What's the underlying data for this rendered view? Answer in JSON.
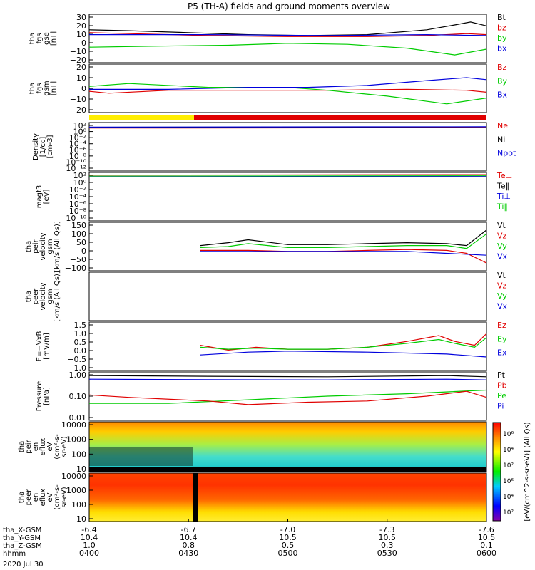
{
  "title": "P5 (TH-A) fields and ground moments overview",
  "colors": {
    "black": "#000000",
    "red": "#e00000",
    "green": "#00cc00",
    "blue": "#0000dd",
    "yellow": "#ffee00"
  },
  "chart_data": {
    "type": "line",
    "title": "P5 (TH-A) fields and ground moments overview",
    "x_axis": {
      "ticks": [
        "0400",
        "0430",
        "0500",
        "0530",
        "0600"
      ],
      "range": [
        "04:00",
        "06:00"
      ],
      "date": "2020 Jul 30",
      "rows": [
        {
          "label": "tha_X-GSM",
          "values": [
            "-6.4",
            "-6.7",
            "-7.0",
            "-7.3",
            "-7.6"
          ]
        },
        {
          "label": "tha_Y-GSM",
          "values": [
            "10.4",
            "10.4",
            "10.5",
            "10.5",
            "10.5"
          ]
        },
        {
          "label": "tha_Z-GSM",
          "values": [
            "1.0",
            "0.8",
            "0.5",
            "0.3",
            "0.1"
          ]
        },
        {
          "label": "hhmm",
          "values": [
            "0400",
            "0430",
            "0500",
            "0530",
            "0600"
          ]
        }
      ]
    },
    "panels": [
      {
        "id": "fgs_gse",
        "ylabel": [
          "tha",
          "fgs",
          "gse",
          "[nT]"
        ],
        "yticks": [
          "30",
          "20",
          "10",
          "0",
          "−10",
          "−20"
        ],
        "ylim": [
          -20,
          30
        ],
        "legend": [
          {
            "name": "Bt",
            "color": "#000000"
          },
          {
            "name": "bz",
            "color": "#e00000"
          },
          {
            "name": "by",
            "color": "#00cc00"
          },
          {
            "name": "bx",
            "color": "#0000dd"
          }
        ],
        "series": [
          {
            "name": "Bt",
            "x": [
              0,
              0.1,
              0.25,
              0.4,
              0.55,
              0.7,
              0.85,
              0.92,
              0.96,
              1
            ],
            "y": [
              14,
              13,
              11,
              9,
              8,
              9,
              14,
              19,
              22,
              18
            ]
          },
          {
            "name": "bz",
            "x": [
              0,
              0.1,
              0.3,
              0.5,
              0.7,
              0.85,
              0.95,
              1
            ],
            "y": [
              11,
              10,
              8,
              7,
              7,
              8,
              10,
              9
            ]
          },
          {
            "name": "by",
            "x": [
              0,
              0.15,
              0.35,
              0.5,
              0.65,
              0.8,
              0.92,
              1
            ],
            "y": [
              -4,
              -3,
              -2,
              0,
              -1,
              -5,
              -12,
              -6
            ]
          },
          {
            "name": "bx",
            "x": [
              0,
              0.3,
              0.6,
              0.85,
              1
            ],
            "y": [
              9,
              9,
              8,
              9,
              8
            ]
          }
        ]
      },
      {
        "id": "fgs_gsm",
        "ylabel": [
          "tha",
          "fgs",
          "gsm",
          "[nT]"
        ],
        "yticks": [
          "20",
          "10",
          "0",
          "−10",
          "−20"
        ],
        "ylim": [
          -25,
          25
        ],
        "legend": [
          {
            "name": "Bz",
            "color": "#e00000"
          },
          {
            "name": "By",
            "color": "#00cc00"
          },
          {
            "name": "Bx",
            "color": "#0000dd"
          }
        ],
        "series": [
          {
            "name": "Bz",
            "x": [
              0,
              0.05,
              0.2,
              0.4,
              0.6,
              0.8,
              0.95,
              1
            ],
            "y": [
              -3,
              -5,
              -2,
              -2,
              -2,
              -1,
              -2,
              -4
            ]
          },
          {
            "name": "By",
            "x": [
              0,
              0.1,
              0.3,
              0.5,
              0.6,
              0.75,
              0.9,
              1
            ],
            "y": [
              2,
              5,
              1,
              1,
              -2,
              -8,
              -16,
              -10
            ]
          },
          {
            "name": "Bx",
            "x": [
              0,
              0.2,
              0.4,
              0.55,
              0.7,
              0.85,
              0.95,
              1
            ],
            "y": [
              -1,
              -1,
              1,
              1,
              3,
              8,
              11,
              9
            ]
          }
        ]
      },
      {
        "id": "density",
        "ylabel": [
          "Density",
          "[1/cc]",
          "[cm-3]"
        ],
        "yticks": [
          "10²",
          "10⁰",
          "10⁻²",
          "10⁻⁴",
          "10⁻⁶",
          "10⁻⁸",
          "10⁻¹⁰",
          "10⁻¹²"
        ],
        "ylim": [
          -13,
          2
        ],
        "log": true,
        "legend": [
          {
            "name": "Ne",
            "color": "#e00000"
          },
          {
            "name": "Ni",
            "color": "#000000"
          },
          {
            "name": "Npot",
            "color": "#0000dd"
          }
        ],
        "series": [
          {
            "name": "Ni",
            "x": [
              0,
              1
            ],
            "y": [
              0.5,
              0.6
            ]
          },
          {
            "name": "Ne",
            "x": [
              0,
              1
            ],
            "y": [
              0.3,
              0.4
            ]
          },
          {
            "name": "Npot",
            "x": [
              0,
              1
            ],
            "y": [
              0.6,
              0.7
            ]
          }
        ]
      },
      {
        "id": "magt3",
        "ylabel": [
          "magt3",
          "[eV]"
        ],
        "yticks": [
          "10²",
          "10⁰",
          "10⁻²",
          "10⁻⁴",
          "10⁻⁶",
          "10⁻⁸",
          "10⁻¹⁰"
        ],
        "ylim": [
          -11,
          2
        ],
        "log": true,
        "legend": [
          {
            "name": "Te⊥",
            "color": "#e00000"
          },
          {
            "name": "Te‖",
            "color": "#000000"
          },
          {
            "name": "Ti⊥",
            "color": "#0000dd"
          },
          {
            "name": "Ti‖",
            "color": "#00cc00"
          }
        ],
        "series": [
          {
            "name": "Te⊥",
            "x": [
              0,
              1
            ],
            "y": [
              1.3,
              1.4
            ]
          },
          {
            "name": "Ti‖",
            "x": [
              0,
              1
            ],
            "y": [
              1.0,
              1.1
            ]
          },
          {
            "name": "Ti⊥",
            "x": [
              0,
              1
            ],
            "y": [
              0.8,
              0.9
            ]
          }
        ]
      },
      {
        "id": "peir_velocity",
        "ylabel": [
          "tha",
          "peir",
          "velocity",
          "gsm",
          "[km/s (All Qs)]"
        ],
        "yticks": [
          "150",
          "100",
          "50",
          "0",
          "−50",
          "−100"
        ],
        "ylim": [
          -100,
          150
        ],
        "legend": [
          {
            "name": "Vt",
            "color": "#000000"
          },
          {
            "name": "Vz",
            "color": "#e00000"
          },
          {
            "name": "Vy",
            "color": "#00cc00"
          },
          {
            "name": "Vx",
            "color": "#0000dd"
          }
        ],
        "series": [
          {
            "name": "Vt",
            "x": [
              0.28,
              0.35,
              0.4,
              0.5,
              0.6,
              0.7,
              0.8,
              0.9,
              0.95,
              1
            ],
            "y": [
              30,
              45,
              60,
              35,
              35,
              40,
              45,
              40,
              30,
              110
            ]
          },
          {
            "name": "Vy",
            "x": [
              0.28,
              0.35,
              0.4,
              0.5,
              0.6,
              0.7,
              0.8,
              0.9,
              0.95,
              1
            ],
            "y": [
              20,
              25,
              40,
              20,
              20,
              25,
              30,
              30,
              15,
              90
            ]
          },
          {
            "name": "Vz",
            "x": [
              0.28,
              0.4,
              0.5,
              0.6,
              0.7,
              0.8,
              0.9,
              0.95,
              1
            ],
            "y": [
              5,
              5,
              0,
              0,
              5,
              10,
              5,
              -10,
              -60
            ]
          },
          {
            "name": "Vx",
            "x": [
              0.28,
              0.5,
              0.8,
              1
            ],
            "y": [
              0,
              0,
              0,
              -20
            ]
          }
        ]
      },
      {
        "id": "peer_velocity",
        "ylabel": [
          "tha",
          "peer",
          "velocity",
          "gsm",
          "[km/s (All Qs)]"
        ],
        "yticks": [],
        "legend": [
          {
            "name": "Vt",
            "color": "#000000"
          },
          {
            "name": "Vz",
            "color": "#e00000"
          },
          {
            "name": "Vy",
            "color": "#00cc00"
          },
          {
            "name": "Vx",
            "color": "#0000dd"
          }
        ],
        "series": []
      },
      {
        "id": "efield",
        "ylabel": [
          "E=−VxB",
          "[mV/m]"
        ],
        "yticks": [
          "1.5",
          "1.0",
          "0.5",
          "0.0",
          "−0.5",
          "−1.0"
        ],
        "ylim": [
          -1.0,
          1.5
        ],
        "legend": [
          {
            "name": "Ez",
            "color": "#e00000"
          },
          {
            "name": "Ey",
            "color": "#00cc00"
          },
          {
            "name": "Ex",
            "color": "#0000dd"
          }
        ],
        "series": [
          {
            "name": "Ez",
            "x": [
              0.28,
              0.35,
              0.42,
              0.5,
              0.6,
              0.7,
              0.8,
              0.88,
              0.92,
              0.97,
              1
            ],
            "y": [
              0.3,
              0.05,
              0.2,
              0.1,
              0.1,
              0.2,
              0.5,
              0.8,
              0.5,
              0.3,
              0.9
            ]
          },
          {
            "name": "Ey",
            "x": [
              0.28,
              0.35,
              0.42,
              0.5,
              0.6,
              0.7,
              0.8,
              0.88,
              0.92,
              0.97,
              1
            ],
            "y": [
              0.2,
              0.1,
              0.15,
              0.1,
              0.1,
              0.2,
              0.4,
              0.6,
              0.4,
              0.2,
              0.7
            ]
          },
          {
            "name": "Ex",
            "x": [
              0.28,
              0.4,
              0.5,
              0.7,
              0.8,
              0.9,
              1
            ],
            "y": [
              -0.2,
              -0.05,
              0.0,
              -0.05,
              -0.1,
              -0.15,
              -0.3
            ]
          }
        ]
      },
      {
        "id": "pressure",
        "ylabel": [
          "Pressure",
          "[nPa]"
        ],
        "yticks": [
          "1.00",
          "0.10",
          "0.01"
        ],
        "ylim": [
          -2,
          0
        ],
        "log": true,
        "legend": [
          {
            "name": "Pt",
            "color": "#000000"
          },
          {
            "name": "Pb",
            "color": "#e00000"
          },
          {
            "name": "Pe",
            "color": "#00cc00"
          },
          {
            "name": "Pi",
            "color": "#0000dd"
          }
        ],
        "series": [
          {
            "name": "Pt",
            "x": [
              0,
              0.3,
              0.6,
              0.9,
              1
            ],
            "y": [
              -0.15,
              -0.18,
              -0.2,
              -0.15,
              -0.2
            ]
          },
          {
            "name": "Pi",
            "x": [
              0,
              0.3,
              0.6,
              0.9,
              1
            ],
            "y": [
              -0.3,
              -0.32,
              -0.33,
              -0.3,
              -0.33
            ]
          },
          {
            "name": "Pe",
            "x": [
              0,
              0.2,
              0.4,
              0.6,
              0.8,
              1
            ],
            "y": [
              -1.3,
              -1.3,
              -1.15,
              -1.0,
              -0.9,
              -0.75
            ]
          },
          {
            "name": "Pb",
            "x": [
              0,
              0.1,
              0.3,
              0.4,
              0.55,
              0.7,
              0.85,
              0.95,
              1
            ],
            "y": [
              -0.95,
              -1.05,
              -1.2,
              -1.35,
              -1.25,
              -1.2,
              -1.0,
              -0.8,
              -1.05
            ]
          }
        ]
      },
      {
        "id": "peir_spectrogram",
        "type": "heatmap",
        "ylabel": [
          "tha",
          "peir",
          "en",
          "eflux",
          "eV",
          "(cm²-s-",
          "sr-eV)"
        ],
        "yticks": [
          "10000",
          "1000",
          "100",
          "10"
        ]
      },
      {
        "id": "peer_spectrogram",
        "type": "heatmap",
        "ylabel": [
          "tha",
          "peer",
          "en",
          "eflux",
          "eV",
          "(cm²-s-",
          "sr-eV)"
        ],
        "yticks": [
          "10000",
          "1000",
          "100",
          "10"
        ]
      }
    ],
    "colorbar": {
      "ticks": [
        "10⁶",
        "10⁴",
        "10²",
        "10⁶",
        "10⁴",
        "10²"
      ],
      "label": "[eV/(cm^2-s-sr-eV)] (All Qs)"
    }
  }
}
